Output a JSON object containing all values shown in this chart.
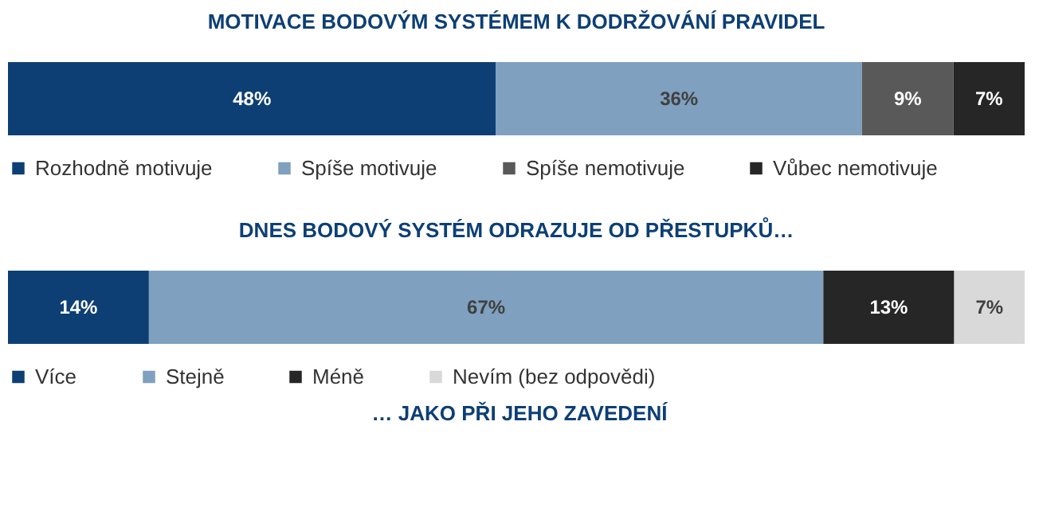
{
  "chart_data": [
    {
      "type": "bar",
      "title": "MOTIVACE BODOVÝM SYSTÉMEM K DODRŽOVÁNÍ PRAVIDEL",
      "orientation": "horizontal",
      "stacked": true,
      "legend": "bottom",
      "categories": [
        null
      ],
      "series": [
        {
          "name": "Rozhodně motivuje",
          "color": "#0d3f75",
          "values": [
            48
          ],
          "value_labels": [
            "48%"
          ]
        },
        {
          "name": "Spíše motivuje",
          "color": "#7fa0bf",
          "values": [
            36
          ],
          "value_labels": [
            "36%"
          ]
        },
        {
          "name": "Spíše nemotivuje",
          "color": "#595959",
          "values": [
            9
          ],
          "value_labels": [
            "9%"
          ]
        },
        {
          "name": "Vůbec nemotivuje",
          "color": "#262626",
          "values": [
            7
          ],
          "value_labels": [
            "7%"
          ]
        }
      ]
    },
    {
      "type": "bar",
      "title": "DNES BODOVÝ SYSTÉM ODRAZUJE OD PŘESTUPKŮ…",
      "orientation": "horizontal",
      "stacked": true,
      "legend": "bottom",
      "categories": [
        null
      ],
      "annotations": [
        "… JAKO PŘI JEHO ZAVEDENÍ"
      ],
      "series": [
        {
          "name": "Více",
          "color": "#0d3f75",
          "values": [
            14
          ],
          "value_labels": [
            "14%"
          ]
        },
        {
          "name": "Stejně",
          "color": "#7fa0bf",
          "values": [
            67
          ],
          "value_labels": [
            "67%"
          ]
        },
        {
          "name": "Méně",
          "color": "#262626",
          "values": [
            13
          ],
          "value_labels": [
            "13%"
          ]
        },
        {
          "name": "Nevím (bez odpovědi)",
          "color": "#d9d9d9",
          "values": [
            7
          ],
          "value_labels": [
            "7%"
          ]
        }
      ]
    }
  ]
}
